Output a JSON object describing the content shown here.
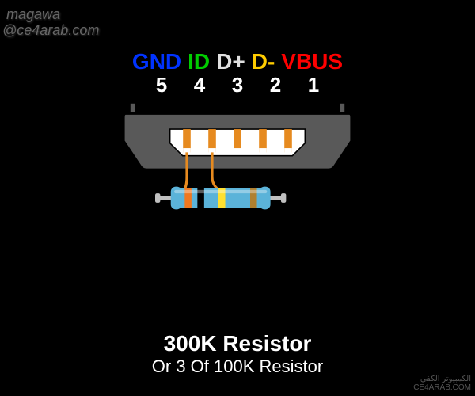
{
  "watermark": {
    "line1": "magawa",
    "line2": "@ce4arab.com"
  },
  "pins": [
    {
      "name": "GND",
      "num": "5",
      "color": "#0033ff"
    },
    {
      "name": "ID",
      "num": "4",
      "color": "#00cc00"
    },
    {
      "name": "D+",
      "num": "3",
      "color": "#e0e0e0"
    },
    {
      "name": "D-",
      "num": "2",
      "color": "#ffcc00"
    },
    {
      "name": "VBUS",
      "num": "1",
      "color": "#ff0000"
    }
  ],
  "connector": {
    "outer_fill": "#595959",
    "outer_stroke": "#000000",
    "inner_fill": "#ffffff",
    "pin_color": "#e68a1f",
    "pin_tip_color": "#ffffff",
    "mount_color": "#595959"
  },
  "wires": {
    "color": "#e68a1f",
    "stroke_width": 6
  },
  "resistor": {
    "body_color": "#5bb3d9",
    "lead_color": "#c0c0c0",
    "bands": [
      "#f07820",
      "#000000",
      "#ffe030",
      "#b08030"
    ],
    "label1": "300K Resistor",
    "label2": "Or 3 Of 100K Resistor"
  },
  "logo": {
    "text": "الكمبيوتر الكفي",
    "url": "CE4ARAB.COM"
  }
}
